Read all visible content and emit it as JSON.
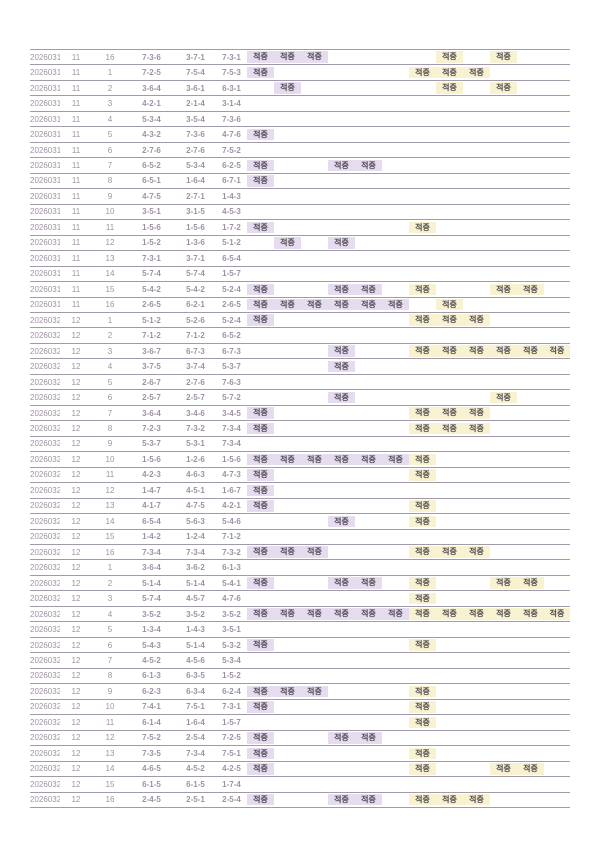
{
  "badge_label": "적중",
  "colors": {
    "row_line": "#a29aaa",
    "muted_text": "#9e92a2",
    "pick1_purple": "#8e56a6",
    "pick2_gold": "#a8922f",
    "result_dark": "#3b3343",
    "purple_badge_bg": "#e6dcef",
    "yellow_badge_bg": "#f8f2d0",
    "badge_text": "#4e4952"
  },
  "table": {
    "rows": [
      {
        "date": "20260314",
        "session": "11",
        "round": "16",
        "pick1": "7-3-6",
        "pick2": "3-7-1",
        "result": "7-3-1",
        "purple_hits": [
          1,
          2,
          3
        ],
        "yellow_hits": [
          2,
          4
        ]
      },
      {
        "date": "20260315",
        "session": "11",
        "round": "1",
        "pick1": "7-2-5",
        "pick2": "7-5-4",
        "result": "7-5-3",
        "purple_hits": [
          1
        ],
        "yellow_hits": [
          1,
          2,
          3
        ]
      },
      {
        "date": "20260315",
        "session": "11",
        "round": "2",
        "pick1": "3-6-4",
        "pick2": "3-6-1",
        "result": "6-3-1",
        "purple_hits": [
          2
        ],
        "yellow_hits": [
          2,
          4
        ]
      },
      {
        "date": "20260315",
        "session": "11",
        "round": "3",
        "pick1": "4-2-1",
        "pick2": "2-1-4",
        "result": "3-1-4",
        "purple_hits": [],
        "yellow_hits": []
      },
      {
        "date": "20260315",
        "session": "11",
        "round": "4",
        "pick1": "5-3-4",
        "pick2": "3-5-4",
        "result": "7-3-6",
        "purple_hits": [],
        "yellow_hits": []
      },
      {
        "date": "20260315",
        "session": "11",
        "round": "5",
        "pick1": "4-3-2",
        "pick2": "7-3-6",
        "result": "4-7-6",
        "purple_hits": [
          1
        ],
        "yellow_hits": []
      },
      {
        "date": "20260315",
        "session": "11",
        "round": "6",
        "pick1": "2-7-6",
        "pick2": "2-7-6",
        "result": "7-5-2",
        "purple_hits": [],
        "yellow_hits": []
      },
      {
        "date": "20260315",
        "session": "11",
        "round": "7",
        "pick1": "6-5-2",
        "pick2": "5-3-4",
        "result": "6-2-5",
        "purple_hits": [
          1,
          4,
          5
        ],
        "yellow_hits": []
      },
      {
        "date": "20260315",
        "session": "11",
        "round": "8",
        "pick1": "6-5-1",
        "pick2": "1-6-4",
        "result": "6-7-1",
        "purple_hits": [
          1
        ],
        "yellow_hits": []
      },
      {
        "date": "20260315",
        "session": "11",
        "round": "9",
        "pick1": "4-7-5",
        "pick2": "2-7-1",
        "result": "1-4-3",
        "purple_hits": [],
        "yellow_hits": []
      },
      {
        "date": "20260315",
        "session": "11",
        "round": "10",
        "pick1": "3-5-1",
        "pick2": "3-1-5",
        "result": "4-5-3",
        "purple_hits": [],
        "yellow_hits": []
      },
      {
        "date": "20260315",
        "session": "11",
        "round": "11",
        "pick1": "1-5-6",
        "pick2": "1-5-6",
        "result": "1-7-2",
        "purple_hits": [
          1
        ],
        "yellow_hits": [
          1
        ]
      },
      {
        "date": "20260315",
        "session": "11",
        "round": "12",
        "pick1": "1-5-2",
        "pick2": "1-3-6",
        "result": "5-1-2",
        "purple_hits": [
          2,
          4
        ],
        "yellow_hits": []
      },
      {
        "date": "20260315",
        "session": "11",
        "round": "13",
        "pick1": "7-3-1",
        "pick2": "3-7-1",
        "result": "6-5-4",
        "purple_hits": [],
        "yellow_hits": []
      },
      {
        "date": "20260315",
        "session": "11",
        "round": "14",
        "pick1": "5-7-4",
        "pick2": "5-7-4",
        "result": "1-5-7",
        "purple_hits": [],
        "yellow_hits": []
      },
      {
        "date": "20260315",
        "session": "11",
        "round": "15",
        "pick1": "5-4-2",
        "pick2": "5-4-2",
        "result": "5-2-4",
        "purple_hits": [
          1,
          4,
          5
        ],
        "yellow_hits": [
          1,
          4,
          5
        ]
      },
      {
        "date": "20260315",
        "session": "11",
        "round": "16",
        "pick1": "2-6-5",
        "pick2": "6-2-1",
        "result": "2-6-5",
        "purple_hits": [
          1,
          2,
          3,
          4,
          5,
          6
        ],
        "yellow_hits": [
          2
        ]
      },
      {
        "date": "20260320",
        "session": "12",
        "round": "1",
        "pick1": "5-1-2",
        "pick2": "5-2-6",
        "result": "5-2-4",
        "purple_hits": [
          1
        ],
        "yellow_hits": [
          1,
          2,
          3
        ]
      },
      {
        "date": "20260320",
        "session": "12",
        "round": "2",
        "pick1": "7-1-2",
        "pick2": "7-1-2",
        "result": "6-5-2",
        "purple_hits": [],
        "yellow_hits": []
      },
      {
        "date": "20260320",
        "session": "12",
        "round": "3",
        "pick1": "3-6-7",
        "pick2": "6-7-3",
        "result": "6-7-3",
        "purple_hits": [
          4
        ],
        "yellow_hits": [
          1,
          2,
          3,
          4,
          5,
          6
        ]
      },
      {
        "date": "20260320",
        "session": "12",
        "round": "4",
        "pick1": "3-7-5",
        "pick2": "3-7-4",
        "result": "5-3-7",
        "purple_hits": [
          4
        ],
        "yellow_hits": []
      },
      {
        "date": "20260320",
        "session": "12",
        "round": "5",
        "pick1": "2-6-7",
        "pick2": "2-7-6",
        "result": "7-6-3",
        "purple_hits": [],
        "yellow_hits": []
      },
      {
        "date": "20260320",
        "session": "12",
        "round": "6",
        "pick1": "2-5-7",
        "pick2": "2-5-7",
        "result": "5-7-2",
        "purple_hits": [
          4
        ],
        "yellow_hits": [
          4
        ]
      },
      {
        "date": "20260320",
        "session": "12",
        "round": "7",
        "pick1": "3-6-4",
        "pick2": "3-4-6",
        "result": "3-4-5",
        "purple_hits": [
          1
        ],
        "yellow_hits": [
          1,
          2,
          3
        ]
      },
      {
        "date": "20260320",
        "session": "12",
        "round": "8",
        "pick1": "7-2-3",
        "pick2": "7-3-2",
        "result": "7-3-4",
        "purple_hits": [
          1
        ],
        "yellow_hits": [
          1,
          2,
          3
        ]
      },
      {
        "date": "20260320",
        "session": "12",
        "round": "9",
        "pick1": "5-3-7",
        "pick2": "5-3-1",
        "result": "7-3-4",
        "purple_hits": [],
        "yellow_hits": []
      },
      {
        "date": "20260320",
        "session": "12",
        "round": "10",
        "pick1": "1-5-6",
        "pick2": "1-2-6",
        "result": "1-5-6",
        "purple_hits": [
          1,
          2,
          3,
          4,
          5,
          6
        ],
        "yellow_hits": [
          1
        ]
      },
      {
        "date": "20260320",
        "session": "12",
        "round": "11",
        "pick1": "4-2-3",
        "pick2": "4-6-3",
        "result": "4-7-3",
        "purple_hits": [
          1
        ],
        "yellow_hits": [
          1
        ]
      },
      {
        "date": "20260320",
        "session": "12",
        "round": "12",
        "pick1": "1-4-7",
        "pick2": "4-5-1",
        "result": "1-6-7",
        "purple_hits": [
          1
        ],
        "yellow_hits": []
      },
      {
        "date": "20260320",
        "session": "12",
        "round": "13",
        "pick1": "4-1-7",
        "pick2": "4-7-5",
        "result": "4-2-1",
        "purple_hits": [
          1
        ],
        "yellow_hits": [
          1
        ]
      },
      {
        "date": "20260320",
        "session": "12",
        "round": "14",
        "pick1": "6-5-4",
        "pick2": "5-6-3",
        "result": "5-4-6",
        "purple_hits": [
          4
        ],
        "yellow_hits": [
          1
        ]
      },
      {
        "date": "20260320",
        "session": "12",
        "round": "15",
        "pick1": "1-4-2",
        "pick2": "1-2-4",
        "result": "7-1-2",
        "purple_hits": [],
        "yellow_hits": []
      },
      {
        "date": "20260320",
        "session": "12",
        "round": "16",
        "pick1": "7-3-4",
        "pick2": "7-3-4",
        "result": "7-3-2",
        "purple_hits": [
          1,
          2,
          3
        ],
        "yellow_hits": [
          1,
          2,
          3
        ]
      },
      {
        "date": "20260321",
        "session": "12",
        "round": "1",
        "pick1": "3-6-4",
        "pick2": "3-6-2",
        "result": "6-1-3",
        "purple_hits": [],
        "yellow_hits": []
      },
      {
        "date": "20260321",
        "session": "12",
        "round": "2",
        "pick1": "5-1-4",
        "pick2": "5-1-4",
        "result": "5-4-1",
        "purple_hits": [
          1,
          4,
          5
        ],
        "yellow_hits": [
          1,
          4,
          5
        ]
      },
      {
        "date": "20260321",
        "session": "12",
        "round": "3",
        "pick1": "5-7-4",
        "pick2": "4-5-7",
        "result": "4-7-6",
        "purple_hits": [],
        "yellow_hits": [
          1
        ]
      },
      {
        "date": "20260321",
        "session": "12",
        "round": "4",
        "pick1": "3-5-2",
        "pick2": "3-5-2",
        "result": "3-5-2",
        "purple_hits": [
          1,
          2,
          3,
          4,
          5,
          6
        ],
        "yellow_hits": [
          1,
          2,
          3,
          4,
          5,
          6
        ]
      },
      {
        "date": "20260321",
        "session": "12",
        "round": "5",
        "pick1": "1-3-4",
        "pick2": "1-4-3",
        "result": "3-5-1",
        "purple_hits": [],
        "yellow_hits": []
      },
      {
        "date": "20260321",
        "session": "12",
        "round": "6",
        "pick1": "5-4-3",
        "pick2": "5-1-4",
        "result": "5-3-2",
        "purple_hits": [
          1
        ],
        "yellow_hits": [
          1
        ]
      },
      {
        "date": "20260321",
        "session": "12",
        "round": "7",
        "pick1": "4-5-2",
        "pick2": "4-5-6",
        "result": "5-3-4",
        "purple_hits": [],
        "yellow_hits": []
      },
      {
        "date": "20260321",
        "session": "12",
        "round": "8",
        "pick1": "6-1-3",
        "pick2": "6-3-5",
        "result": "1-5-2",
        "purple_hits": [],
        "yellow_hits": []
      },
      {
        "date": "20260321",
        "session": "12",
        "round": "9",
        "pick1": "6-2-3",
        "pick2": "6-3-4",
        "result": "6-2-4",
        "purple_hits": [
          1,
          2,
          3
        ],
        "yellow_hits": [
          1
        ]
      },
      {
        "date": "20260321",
        "session": "12",
        "round": "10",
        "pick1": "7-4-1",
        "pick2": "7-5-1",
        "result": "7-3-1",
        "purple_hits": [
          1
        ],
        "yellow_hits": [
          1
        ]
      },
      {
        "date": "20260321",
        "session": "12",
        "round": "11",
        "pick1": "6-1-4",
        "pick2": "1-6-4",
        "result": "1-5-7",
        "purple_hits": [],
        "yellow_hits": [
          1
        ]
      },
      {
        "date": "20260321",
        "session": "12",
        "round": "12",
        "pick1": "7-5-2",
        "pick2": "2-5-4",
        "result": "7-2-5",
        "purple_hits": [
          1,
          4,
          5
        ],
        "yellow_hits": []
      },
      {
        "date": "20260321",
        "session": "12",
        "round": "13",
        "pick1": "7-3-5",
        "pick2": "7-3-4",
        "result": "7-5-1",
        "purple_hits": [
          1
        ],
        "yellow_hits": [
          1
        ]
      },
      {
        "date": "20260321",
        "session": "12",
        "round": "14",
        "pick1": "4-6-5",
        "pick2": "4-5-2",
        "result": "4-2-5",
        "purple_hits": [
          1
        ],
        "yellow_hits": [
          1,
          4,
          5
        ]
      },
      {
        "date": "20260321",
        "session": "12",
        "round": "15",
        "pick1": "6-1-5",
        "pick2": "6-1-5",
        "result": "1-7-4",
        "purple_hits": [],
        "yellow_hits": []
      },
      {
        "date": "20260321",
        "session": "12",
        "round": "16",
        "pick1": "2-4-5",
        "pick2": "2-5-1",
        "result": "2-5-4",
        "purple_hits": [
          1,
          4,
          5
        ],
        "yellow_hits": [
          1,
          2,
          3
        ]
      }
    ]
  }
}
